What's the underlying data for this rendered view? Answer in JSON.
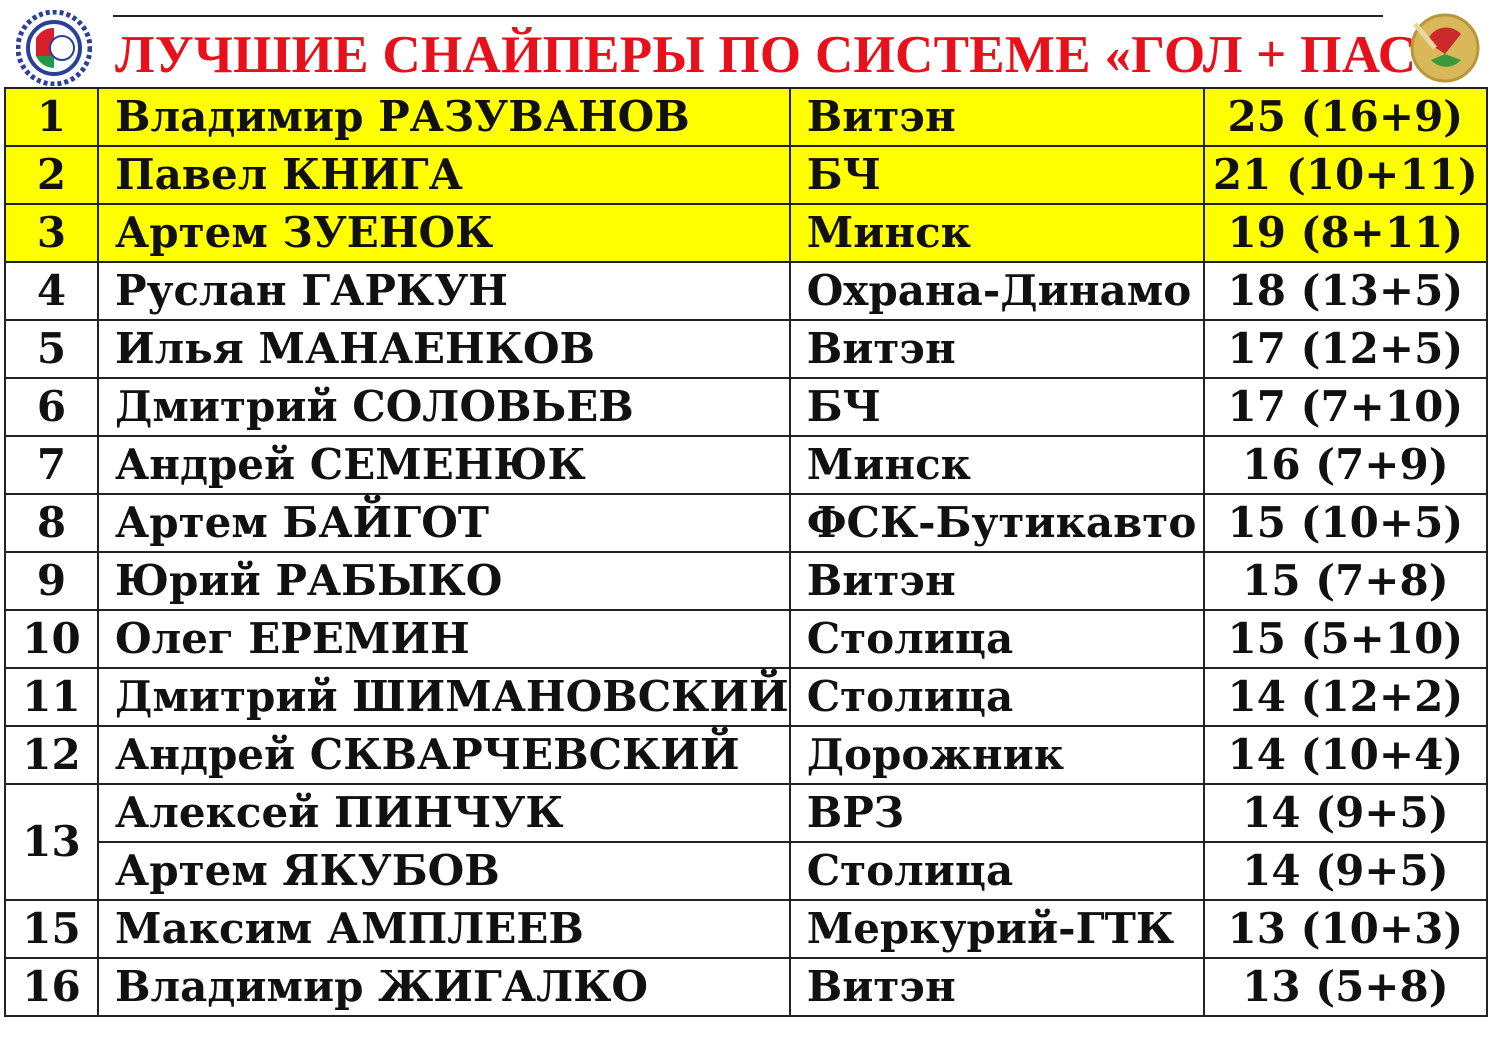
{
  "title": "ЛУЧШИЕ СНАЙПЕРЫ ПО СИСТЕМЕ «ГОЛ + ПАС»",
  "colors": {
    "title": "#e8101a",
    "highlight": "#ffff00"
  },
  "rows": [
    {
      "rank": "1",
      "name": "Владимир РАЗУВАНОВ",
      "team": "Витэн",
      "points": "25 (16+9)",
      "highlight": true
    },
    {
      "rank": "2",
      "name": "Павел КНИГА",
      "team": "БЧ",
      "points": "21 (10+11)",
      "highlight": true
    },
    {
      "rank": "3",
      "name": "Артем ЗУЕНОК",
      "team": "Минск",
      "points": "19 (8+11)",
      "highlight": true
    },
    {
      "rank": "4",
      "name": "Руслан ГАРКУН",
      "team": "Охрана-Динамо",
      "points": "18 (13+5)"
    },
    {
      "rank": "5",
      "name": "Илья МАНАЕНКОВ",
      "team": "Витэн",
      "points": "17 (12+5)"
    },
    {
      "rank": "6",
      "name": "Дмитрий СОЛОВЬЕВ",
      "team": "БЧ",
      "points": "17 (7+10)"
    },
    {
      "rank": "7",
      "name": "Андрей СЕМЕНЮК",
      "team": "Минск",
      "points": "16 (7+9)"
    },
    {
      "rank": "8",
      "name": "Артем БАЙГОТ",
      "team": "ФСК-Бутикавто",
      "points": "15 (10+5)"
    },
    {
      "rank": "9",
      "name": "Юрий РАБЫКО",
      "team": "Витэн",
      "points": "15 (7+8)"
    },
    {
      "rank": "10",
      "name": "Олег ЕРЕМИН",
      "team": "Столица",
      "points": "15 (5+10)"
    },
    {
      "rank": "11",
      "name": "Дмитрий ШИМАНОВСКИЙ",
      "team": "Столица",
      "points": "14 (12+2)"
    },
    {
      "rank": "12",
      "name": "Андрей СКВАРЧЕВСКИЙ",
      "team": "Дорожник",
      "points": "14 (10+4)"
    },
    {
      "rank": "13",
      "name": "Алексей ПИНЧУК",
      "team": "ВРЗ",
      "points": "14 (9+5)"
    },
    {
      "rank": "",
      "name": "Артем ЯКУБОВ",
      "team": "Столица",
      "points": "14 (9+5)"
    },
    {
      "rank": "15",
      "name": "Максим АМПЛЕЕВ",
      "team": "Меркурий-ГТК",
      "points": "13 (10+3)"
    },
    {
      "rank": "16",
      "name": "Владимир ЖИГАЛКО",
      "team": "Витэн",
      "points": "13 (5+8)"
    }
  ]
}
